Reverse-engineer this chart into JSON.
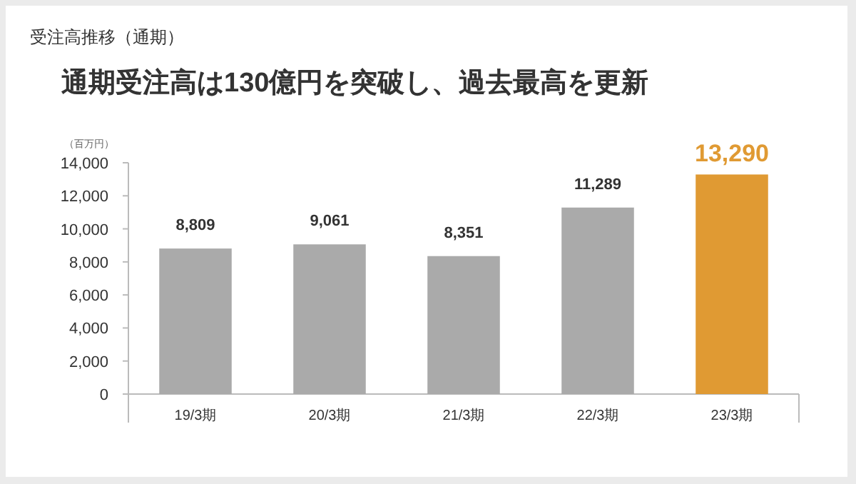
{
  "chart_data": {
    "type": "bar",
    "subtitle": "受注高推移（通期）",
    "title": "通期受注高は130億円を突破し、過去最高を更新",
    "ylabel": "（百万円）",
    "categories": [
      "19/3期",
      "20/3期",
      "21/3期",
      "22/3期",
      "23/3期"
    ],
    "values": [
      8809,
      9061,
      8351,
      11289,
      13290
    ],
    "value_labels": [
      "8,809",
      "9,061",
      "8,351",
      "11,289",
      "13,290"
    ],
    "colors": [
      "#aaaaaa",
      "#aaaaaa",
      "#aaaaaa",
      "#aaaaaa",
      "#e09a33"
    ],
    "ylim": [
      0,
      14000
    ],
    "yticks": [
      {
        "value": 0,
        "label": "0"
      },
      {
        "value": 2000,
        "label": "2,000"
      },
      {
        "value": 4000,
        "label": "4,000"
      },
      {
        "value": 6000,
        "label": "6,000"
      },
      {
        "value": 8000,
        "label": "8,000"
      },
      {
        "value": 10000,
        "label": "10,000"
      },
      {
        "value": 12000,
        "label": "12,000"
      },
      {
        "value": 14000,
        "label": "14,000"
      }
    ],
    "grid": false
  }
}
